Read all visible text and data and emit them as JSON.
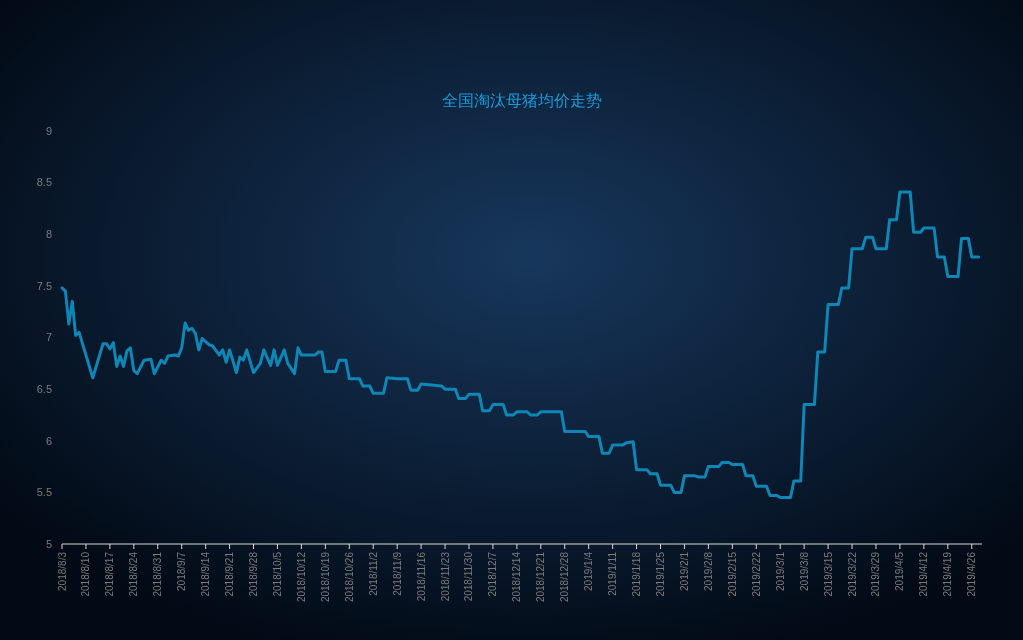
{
  "chart_data": {
    "type": "line",
    "title": "全国淘汰母猪均价走势",
    "xlim": [
      "2018-08-03",
      "2019-04-29"
    ],
    "ylim": [
      5,
      9
    ],
    "yticks": [
      5,
      5.5,
      6,
      6.5,
      7,
      7.5,
      8,
      8.5,
      9
    ],
    "xticks": [
      {
        "value": "2018-08-03",
        "label": "2018/8/3"
      },
      {
        "value": "2018-08-10",
        "label": "2018/8/10"
      },
      {
        "value": "2018-08-17",
        "label": "2018/8/17"
      },
      {
        "value": "2018-08-24",
        "label": "2018/8/24"
      },
      {
        "value": "2018-08-31",
        "label": "2018/8/31"
      },
      {
        "value": "2018-09-07",
        "label": "2018/9/7"
      },
      {
        "value": "2018-09-14",
        "label": "2018/9/14"
      },
      {
        "value": "2018-09-21",
        "label": "2018/9/21"
      },
      {
        "value": "2018-09-28",
        "label": "2018/9/28"
      },
      {
        "value": "2018-10-05",
        "label": "2018/10/5"
      },
      {
        "value": "2018-10-12",
        "label": "2018/10/12"
      },
      {
        "value": "2018-10-19",
        "label": "2018/10/19"
      },
      {
        "value": "2018-10-26",
        "label": "2018/10/26"
      },
      {
        "value": "2018-11-02",
        "label": "2018/11/2"
      },
      {
        "value": "2018-11-09",
        "label": "2018/11/9"
      },
      {
        "value": "2018-11-16",
        "label": "2018/11/16"
      },
      {
        "value": "2018-11-23",
        "label": "2018/11/23"
      },
      {
        "value": "2018-11-30",
        "label": "2018/11/30"
      },
      {
        "value": "2018-12-07",
        "label": "2018/12/7"
      },
      {
        "value": "2018-12-14",
        "label": "2018/12/14"
      },
      {
        "value": "2018-12-21",
        "label": "2018/12/21"
      },
      {
        "value": "2018-12-28",
        "label": "2018/12/28"
      },
      {
        "value": "2019-01-04",
        "label": "2019/1/4"
      },
      {
        "value": "2019-01-11",
        "label": "2019/1/11"
      },
      {
        "value": "2019-01-18",
        "label": "2019/1/18"
      },
      {
        "value": "2019-01-25",
        "label": "2019/1/25"
      },
      {
        "value": "2019-02-01",
        "label": "2019/2/1"
      },
      {
        "value": "2019-02-08",
        "label": "2019/2/8"
      },
      {
        "value": "2019-02-15",
        "label": "2019/2/15"
      },
      {
        "value": "2019-02-22",
        "label": "2019/2/22"
      },
      {
        "value": "2019-03-01",
        "label": "2019/3/1"
      },
      {
        "value": "2019-03-08",
        "label": "2019/3/8"
      },
      {
        "value": "2019-03-15",
        "label": "2019/3/15"
      },
      {
        "value": "2019-03-22",
        "label": "2019/3/22"
      },
      {
        "value": "2019-03-29",
        "label": "2019/3/29"
      },
      {
        "value": "2019-04-05",
        "label": "2019/4/5"
      },
      {
        "value": "2019-04-12",
        "label": "2019/4/12"
      },
      {
        "value": "2019-04-19",
        "label": "2019/4/19"
      },
      {
        "value": "2019-04-26",
        "label": "2019/4/26"
      }
    ],
    "grid": false,
    "marker": "none",
    "line_style": "solid",
    "series": [
      {
        "color": "#0e86b6",
        "x": [
          "2018-08-03",
          "2018-08-04",
          "2018-08-05",
          "2018-08-06",
          "2018-08-07",
          "2018-08-08",
          "2018-08-12",
          "2018-08-15",
          "2018-08-16",
          "2018-08-17",
          "2018-08-18",
          "2018-08-19",
          "2018-08-20",
          "2018-08-21",
          "2018-08-22",
          "2018-08-23",
          "2018-08-24",
          "2018-08-25",
          "2018-08-27",
          "2018-08-29",
          "2018-08-30",
          "2018-09-01",
          "2018-09-02",
          "2018-09-03",
          "2018-09-05",
          "2018-09-06",
          "2018-09-07",
          "2018-09-08",
          "2018-09-09",
          "2018-09-10",
          "2018-09-11",
          "2018-09-12",
          "2018-09-13",
          "2018-09-15",
          "2018-09-16",
          "2018-09-18",
          "2018-09-19",
          "2018-09-20",
          "2018-09-21",
          "2018-09-23",
          "2018-09-24",
          "2018-09-25",
          "2018-09-26",
          "2018-09-28",
          "2018-09-30",
          "2018-10-01",
          "2018-10-03",
          "2018-10-04",
          "2018-10-05",
          "2018-10-07",
          "2018-10-08",
          "2018-10-10",
          "2018-10-11",
          "2018-10-12",
          "2018-10-16",
          "2018-10-17",
          "2018-10-18",
          "2018-10-19",
          "2018-10-22",
          "2018-10-23",
          "2018-10-25",
          "2018-10-26",
          "2018-10-29",
          "2018-10-30",
          "2018-11-01",
          "2018-11-02",
          "2018-11-05",
          "2018-11-06",
          "2018-11-09",
          "2018-11-12",
          "2018-11-13",
          "2018-11-15",
          "2018-11-16",
          "2018-11-19",
          "2018-11-22",
          "2018-11-23",
          "2018-11-26",
          "2018-11-27",
          "2018-11-29",
          "2018-11-30",
          "2018-12-03",
          "2018-12-04",
          "2018-12-06",
          "2018-12-07",
          "2018-12-10",
          "2018-12-11",
          "2018-12-13",
          "2018-12-14",
          "2018-12-17",
          "2018-12-18",
          "2018-12-20",
          "2018-12-21",
          "2018-12-27",
          "2018-12-28",
          "2019-01-03",
          "2019-01-04",
          "2019-01-07",
          "2019-01-08",
          "2019-01-10",
          "2019-01-11",
          "2019-01-14",
          "2019-01-15",
          "2019-01-17",
          "2019-01-18",
          "2019-01-21",
          "2019-01-22",
          "2019-01-24",
          "2019-01-25",
          "2019-01-28",
          "2019-01-29",
          "2019-01-31",
          "2019-02-01",
          "2019-02-04",
          "2019-02-05",
          "2019-02-07",
          "2019-02-08",
          "2019-02-11",
          "2019-02-12",
          "2019-02-14",
          "2019-02-15",
          "2019-02-18",
          "2019-02-19",
          "2019-02-21",
          "2019-02-22",
          "2019-02-25",
          "2019-02-26",
          "2019-02-28",
          "2019-03-01",
          "2019-03-04",
          "2019-03-05",
          "2019-03-07",
          "2019-03-08",
          "2019-03-11",
          "2019-03-12",
          "2019-03-14",
          "2019-03-15",
          "2019-03-18",
          "2019-03-19",
          "2019-03-21",
          "2019-03-22",
          "2019-03-25",
          "2019-03-26",
          "2019-03-28",
          "2019-03-29",
          "2019-04-01",
          "2019-04-02",
          "2019-04-04",
          "2019-04-05",
          "2019-04-08",
          "2019-04-09",
          "2019-04-11",
          "2019-04-12",
          "2019-04-15",
          "2019-04-16",
          "2019-04-18",
          "2019-04-19",
          "2019-04-22",
          "2019-04-23",
          "2019-04-25",
          "2019-04-26",
          "2019-04-28"
        ],
        "values": [
          7.48,
          7.45,
          7.13,
          7.35,
          7.02,
          7.05,
          6.61,
          6.94,
          6.94,
          6.89,
          6.95,
          6.72,
          6.82,
          6.72,
          6.87,
          6.9,
          6.68,
          6.65,
          6.78,
          6.79,
          6.65,
          6.78,
          6.75,
          6.82,
          6.83,
          6.82,
          6.9,
          7.14,
          7.07,
          7.09,
          7.04,
          6.88,
          6.99,
          6.93,
          6.92,
          6.83,
          6.88,
          6.76,
          6.88,
          6.66,
          6.81,
          6.78,
          6.88,
          6.66,
          6.75,
          6.88,
          6.73,
          6.88,
          6.73,
          6.88,
          6.75,
          6.65,
          6.9,
          6.83,
          6.83,
          6.86,
          6.86,
          6.67,
          6.67,
          6.78,
          6.78,
          6.6,
          6.6,
          6.53,
          6.53,
          6.46,
          6.46,
          6.61,
          6.6,
          6.6,
          6.49,
          6.49,
          6.55,
          6.54,
          6.53,
          6.5,
          6.5,
          6.41,
          6.41,
          6.45,
          6.45,
          6.29,
          6.29,
          6.35,
          6.35,
          6.25,
          6.25,
          6.28,
          6.28,
          6.25,
          6.25,
          6.28,
          6.28,
          6.09,
          6.09,
          6.04,
          6.04,
          5.88,
          5.88,
          5.96,
          5.96,
          5.98,
          5.99,
          5.72,
          5.72,
          5.68,
          5.68,
          5.57,
          5.57,
          5.5,
          5.5,
          5.66,
          5.66,
          5.65,
          5.65,
          5.75,
          5.75,
          5.79,
          5.79,
          5.77,
          5.77,
          5.66,
          5.66,
          5.56,
          5.56,
          5.47,
          5.47,
          5.45,
          5.45,
          5.61,
          5.61,
          6.35,
          6.35,
          6.86,
          6.86,
          7.32,
          7.32,
          7.48,
          7.48,
          7.86,
          7.86,
          7.97,
          7.97,
          7.86,
          7.86,
          8.14,
          8.14,
          8.41,
          8.41,
          8.02,
          8.02,
          8.06,
          8.06,
          7.78,
          7.78,
          7.59,
          7.59,
          7.96,
          7.96,
          7.78,
          7.78
        ]
      }
    ]
  }
}
